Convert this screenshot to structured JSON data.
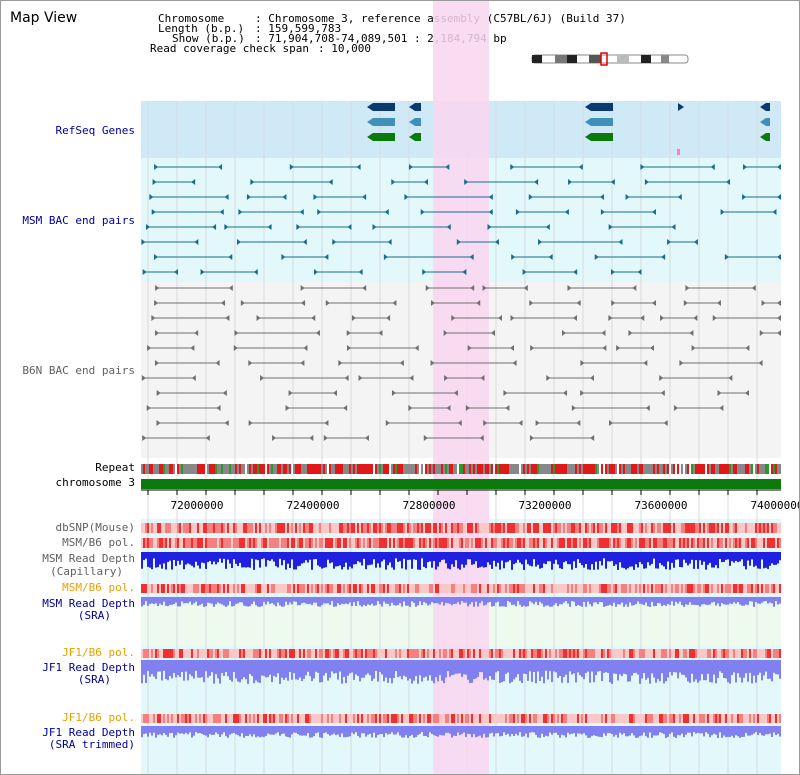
{
  "view_title": "Map View",
  "info": {
    "chromosome_label": "Chromosome   ",
    "chromosome_value": ": Chromosome 3, reference assembly (C57BL/6J) (Build 37)",
    "length_label": "Length (b.p.)",
    "length_value": ": 159,599,783",
    "show_label": "Show (b.p.) ",
    "show_value": ": 71,904,708-74,089,501 : 2,184,794 bp",
    "coverage_label": "Read coverage check span",
    "coverage_value": ": 10,000"
  },
  "tracks": {
    "refseq": "RefSeq Genes",
    "msm_bac": "MSM BAC end pairs",
    "b6n_bac": "B6N BAC end pairs",
    "repeat": "Repeat",
    "chromosome": "chromosome 3",
    "dbsnp": "dbSNP(Mouse)",
    "msm_b6_pol_1": "MSM/B6 pol.",
    "msm_read_depth_cap_1": "MSM Read Depth",
    "msm_read_depth_cap_2": "(Capillary)",
    "msm_b6_pol_2": "MSM/B6 pol.",
    "msm_read_depth_sra_1": "MSM Read Depth",
    "msm_read_depth_sra_2": "(SRA)",
    "jf1_b6_pol_1": "JF1/B6 pol.",
    "jf1_read_depth_1": "JF1 Read Depth",
    "jf1_read_depth_2": "(SRA)",
    "jf1_b6_pol_2": "JF1/B6 pol.",
    "jf1_read_depth_trim_1": "JF1 Read Depth",
    "jf1_read_depth_trim_2": "(SRA trimmed)"
  },
  "axis": {
    "ticks": [
      "72000000",
      "72400000",
      "72800000",
      "73200000",
      "73600000",
      "74000000"
    ]
  },
  "colors": {
    "refseq_bg": "#cfeaf6",
    "msm_bg": "#e3f8fa",
    "b6n_bg": "#f4f4f4",
    "highlight": "#f9d6f0",
    "chromosome_bar": "#0b7a0b",
    "depth_capillary": "#2020e0",
    "depth_sra": "#8080f0",
    "gene_dark": "#0b3a6e",
    "gene_mid": "#3f8fb8",
    "gene_green": "#0b7a0b",
    "bac_msm": "#1a6e8a",
    "bac_b6n": "#707070"
  }
}
